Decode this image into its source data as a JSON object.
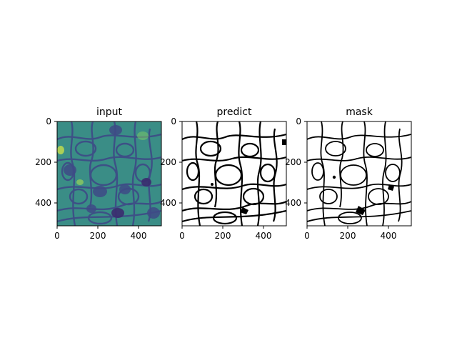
{
  "figure": {
    "panels": [
      {
        "title": "input",
        "x_ticks": [
          "0",
          "200",
          "400"
        ],
        "y_ticks": [
          "0",
          "200",
          "400"
        ],
        "colormap": "viridis",
        "colors": {
          "bg": "#2f6f8e",
          "mid": "#3b8f8a",
          "bright": "#9ad35a",
          "dark": "#3b2b6f"
        }
      },
      {
        "title": "predict",
        "x_ticks": [
          "0",
          "200",
          "400"
        ],
        "y_ticks": [
          "0",
          "200",
          "400"
        ],
        "colors": {
          "bg": "#ffffff",
          "line": "#000000"
        }
      },
      {
        "title": "mask",
        "x_ticks": [
          "0",
          "200",
          "400"
        ],
        "y_ticks": [
          "0",
          "200",
          "400"
        ],
        "colors": {
          "bg": "#ffffff",
          "line": "#000000"
        }
      }
    ]
  }
}
